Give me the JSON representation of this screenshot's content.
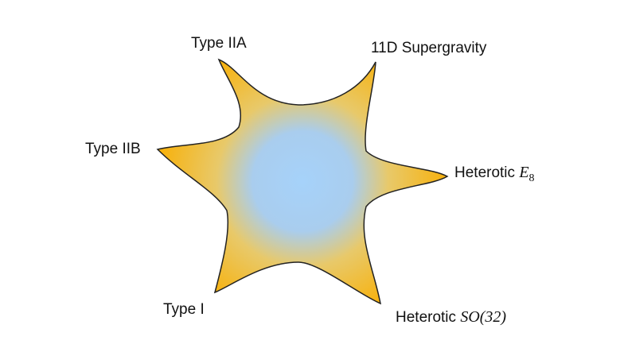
{
  "nodes": [
    {
      "label": {
        "text": "Type IIA"
      }
    },
    {
      "label": {
        "text": "11D Supergravity"
      }
    },
    {
      "label": {
        "text": "Type IIB"
      }
    },
    {
      "label": {
        "text": "Heterotic",
        "math": "E",
        "sub": "8"
      }
    },
    {
      "label": {
        "text": "Type I"
      }
    },
    {
      "label": {
        "text": "Heterotic",
        "math": "SO(32)"
      }
    }
  ]
}
